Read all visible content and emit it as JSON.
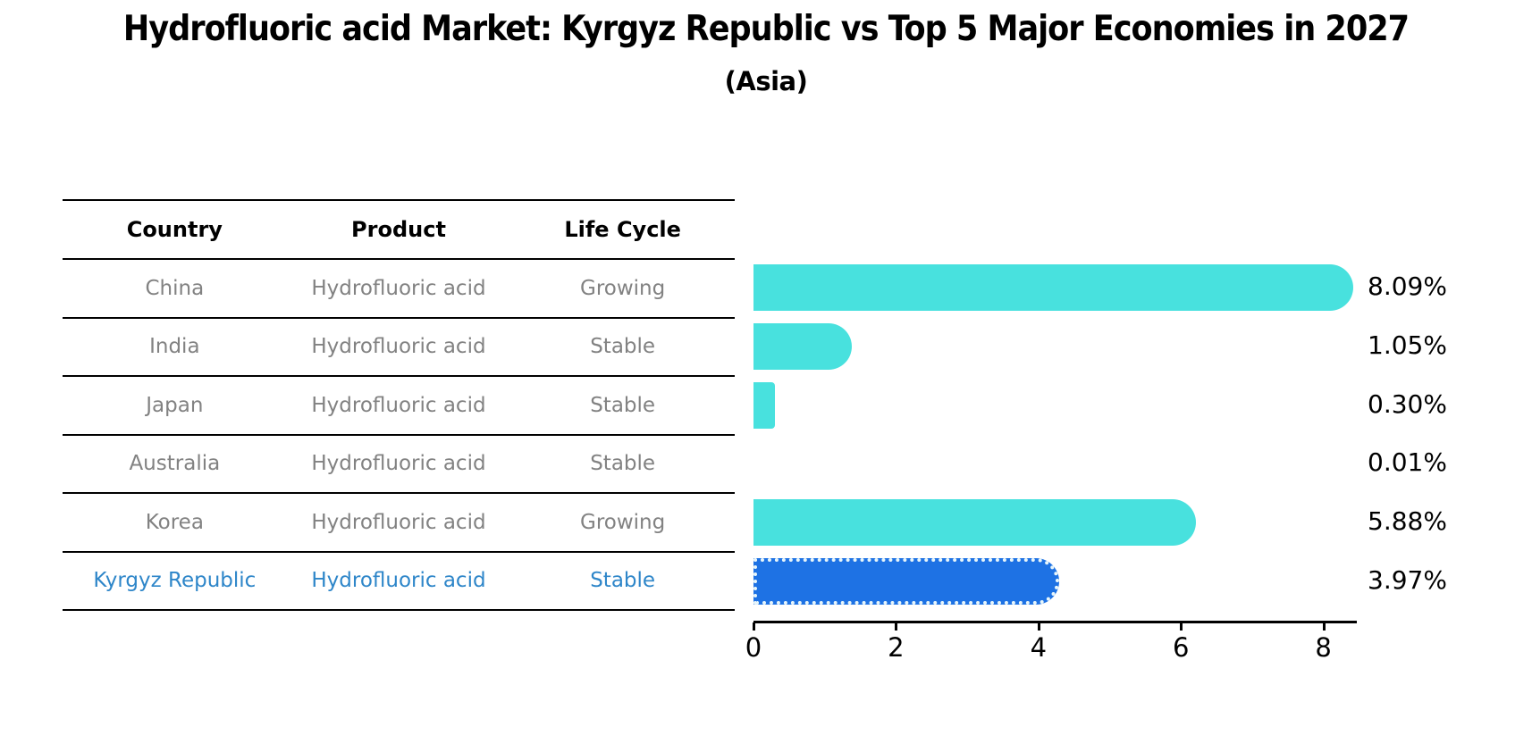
{
  "title": "Hydrofluoric acid Market: Kyrgyz Republic vs Top 5 Major Economies in 2027",
  "subtitle": "(Asia)",
  "colors": {
    "bar_default": "#48e1de",
    "bar_highlight": "#1e72e4",
    "highlight_text": "#2e86c9",
    "row_text": "#828282",
    "header_text": "#000000"
  },
  "table": {
    "headers": [
      "Country",
      "Product",
      "Life Cycle"
    ],
    "rows": [
      {
        "country": "China",
        "product": "Hydrofluoric acid",
        "life_cycle": "Growing",
        "highlight": false
      },
      {
        "country": "India",
        "product": "Hydrofluoric acid",
        "life_cycle": "Stable",
        "highlight": false
      },
      {
        "country": "Japan",
        "product": "Hydrofluoric acid",
        "life_cycle": "Stable",
        "highlight": false
      },
      {
        "country": "Australia",
        "product": "Hydrofluoric acid",
        "life_cycle": "Stable",
        "highlight": false
      },
      {
        "country": "Korea",
        "product": "Hydrofluoric acid",
        "life_cycle": "Growing",
        "highlight": false
      },
      {
        "country": "Kyrgyz Republic",
        "product": "Hydrofluoric acid",
        "life_cycle": "Stable",
        "highlight": true
      }
    ]
  },
  "chart_data": {
    "type": "bar",
    "orientation": "horizontal",
    "title": "Hydrofluoric acid Market: Kyrgyz Republic vs Top 5 Major Economies in 2027 (Asia)",
    "xlabel": "",
    "ylabel": "",
    "categories": [
      "China",
      "India",
      "Japan",
      "Australia",
      "Korea",
      "Kyrgyz Republic"
    ],
    "values": [
      8.09,
      1.05,
      0.3,
      0.01,
      5.88,
      3.97
    ],
    "value_labels": [
      "8.09%",
      "1.05%",
      "0.30%",
      "0.01%",
      "5.88%",
      "3.97%"
    ],
    "highlight_index": 5,
    "xlim": [
      0,
      8.5
    ],
    "xticks": [
      0,
      2,
      4,
      6,
      8
    ],
    "grid": false,
    "legend": false
  }
}
